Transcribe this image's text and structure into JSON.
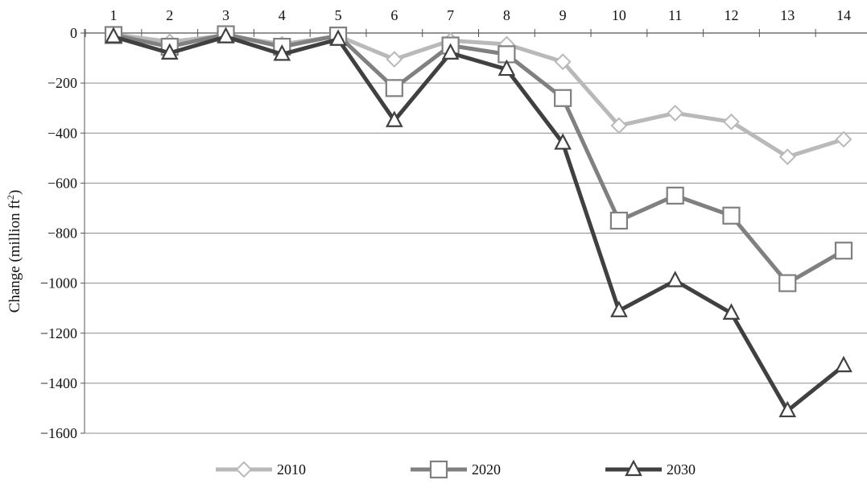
{
  "chart_data": {
    "type": "line",
    "title": "",
    "xlabel": "",
    "ylabel": "Change (million ft",
    "ylabel_sup": "2",
    "ylabel_end": ")",
    "categories": [
      "1",
      "2",
      "3",
      "4",
      "5",
      "6",
      "7",
      "8",
      "9",
      "10",
      "11",
      "12",
      "13",
      "14"
    ],
    "ylim": [
      -1600,
      0
    ],
    "yticks": [
      0,
      -200,
      -400,
      -600,
      -800,
      -1000,
      -1200,
      -1400,
      -1600
    ],
    "x_axis_position": "top",
    "grid": "horizontal",
    "legend_position": "bottom-center",
    "series": [
      {
        "name": "2010",
        "color": "#b9b9b9",
        "marker": "diamond",
        "values": [
          -5,
          -35,
          -10,
          -45,
          -12,
          -105,
          -30,
          -45,
          -115,
          -370,
          -320,
          -355,
          -495,
          -425
        ]
      },
      {
        "name": "2020",
        "color": "#808080",
        "marker": "square",
        "values": [
          -8,
          -55,
          -5,
          -55,
          -10,
          -220,
          -50,
          -85,
          -260,
          -750,
          -650,
          -730,
          -1000,
          -870
        ]
      },
      {
        "name": "2030",
        "color": "#404040",
        "marker": "triangle",
        "values": [
          -15,
          -80,
          -15,
          -85,
          -25,
          -350,
          -80,
          -145,
          -440,
          -1110,
          -990,
          -1120,
          -1510,
          -1330
        ]
      }
    ]
  }
}
